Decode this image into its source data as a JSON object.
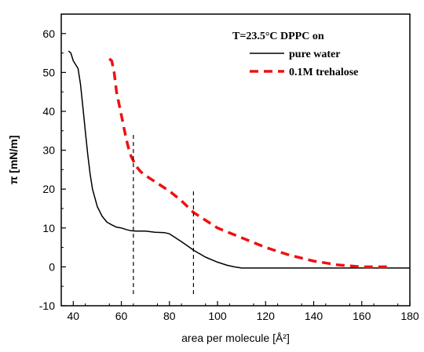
{
  "chart_data": {
    "type": "line",
    "annotation": "T=23.5°C   DPPC on",
    "xlabel": "area per molecule [Å²]",
    "ylabel": "π [mN/m]",
    "xlim": [
      35,
      180
    ],
    "ylim": [
      -10,
      65
    ],
    "xticks": [
      40,
      60,
      80,
      100,
      120,
      140,
      160,
      180
    ],
    "yticks": [
      -10,
      0,
      10,
      20,
      30,
      40,
      50,
      60
    ],
    "grid": false,
    "legend": "top-right",
    "series": [
      {
        "name": "pure water",
        "color": "#000000",
        "style": "solid",
        "points": [
          [
            38,
            55.5
          ],
          [
            39,
            55
          ],
          [
            40,
            53
          ],
          [
            42,
            51
          ],
          [
            43,
            47
          ],
          [
            44,
            41
          ],
          [
            45,
            35
          ],
          [
            46,
            29
          ],
          [
            47,
            24
          ],
          [
            48,
            20
          ],
          [
            50,
            15.5
          ],
          [
            52,
            13
          ],
          [
            54,
            11.5
          ],
          [
            56,
            10.8
          ],
          [
            58,
            10.2
          ],
          [
            60,
            10
          ],
          [
            62,
            9.6
          ],
          [
            64,
            9.3
          ],
          [
            66,
            9.2
          ],
          [
            70,
            9.2
          ],
          [
            74,
            8.9
          ],
          [
            78,
            8.8
          ],
          [
            80,
            8.5
          ],
          [
            82,
            7.7
          ],
          [
            85,
            6.5
          ],
          [
            88,
            5.2
          ],
          [
            90,
            4.3
          ],
          [
            95,
            2.5
          ],
          [
            100,
            1.2
          ],
          [
            104,
            0.4
          ],
          [
            107,
            0
          ],
          [
            110,
            -0.3
          ],
          [
            140,
            -0.3
          ],
          [
            180,
            -0.3
          ]
        ]
      },
      {
        "name": "0.1M trehalose",
        "color": "#ee1111",
        "style": "dashed",
        "points": [
          [
            55,
            53.5
          ],
          [
            56,
            53
          ],
          [
            57,
            50
          ],
          [
            58,
            45
          ],
          [
            59,
            42
          ],
          [
            60,
            39
          ],
          [
            61,
            36
          ],
          [
            62,
            33
          ],
          [
            63,
            30.5
          ],
          [
            64,
            28.5
          ],
          [
            66,
            26
          ],
          [
            68,
            24.5
          ],
          [
            70,
            23.5
          ],
          [
            75,
            21.5
          ],
          [
            80,
            19.5
          ],
          [
            85,
            17
          ],
          [
            90,
            14
          ],
          [
            95,
            12
          ],
          [
            100,
            10
          ],
          [
            110,
            7.5
          ],
          [
            120,
            5
          ],
          [
            130,
            3
          ],
          [
            140,
            1.5
          ],
          [
            150,
            0.5
          ],
          [
            160,
            0
          ],
          [
            172,
            0
          ]
        ]
      }
    ],
    "markers": [
      {
        "x": 65,
        "y_from": -7,
        "y_to": 34
      },
      {
        "x": 90,
        "y_from": -7,
        "y_to": 20
      }
    ]
  }
}
